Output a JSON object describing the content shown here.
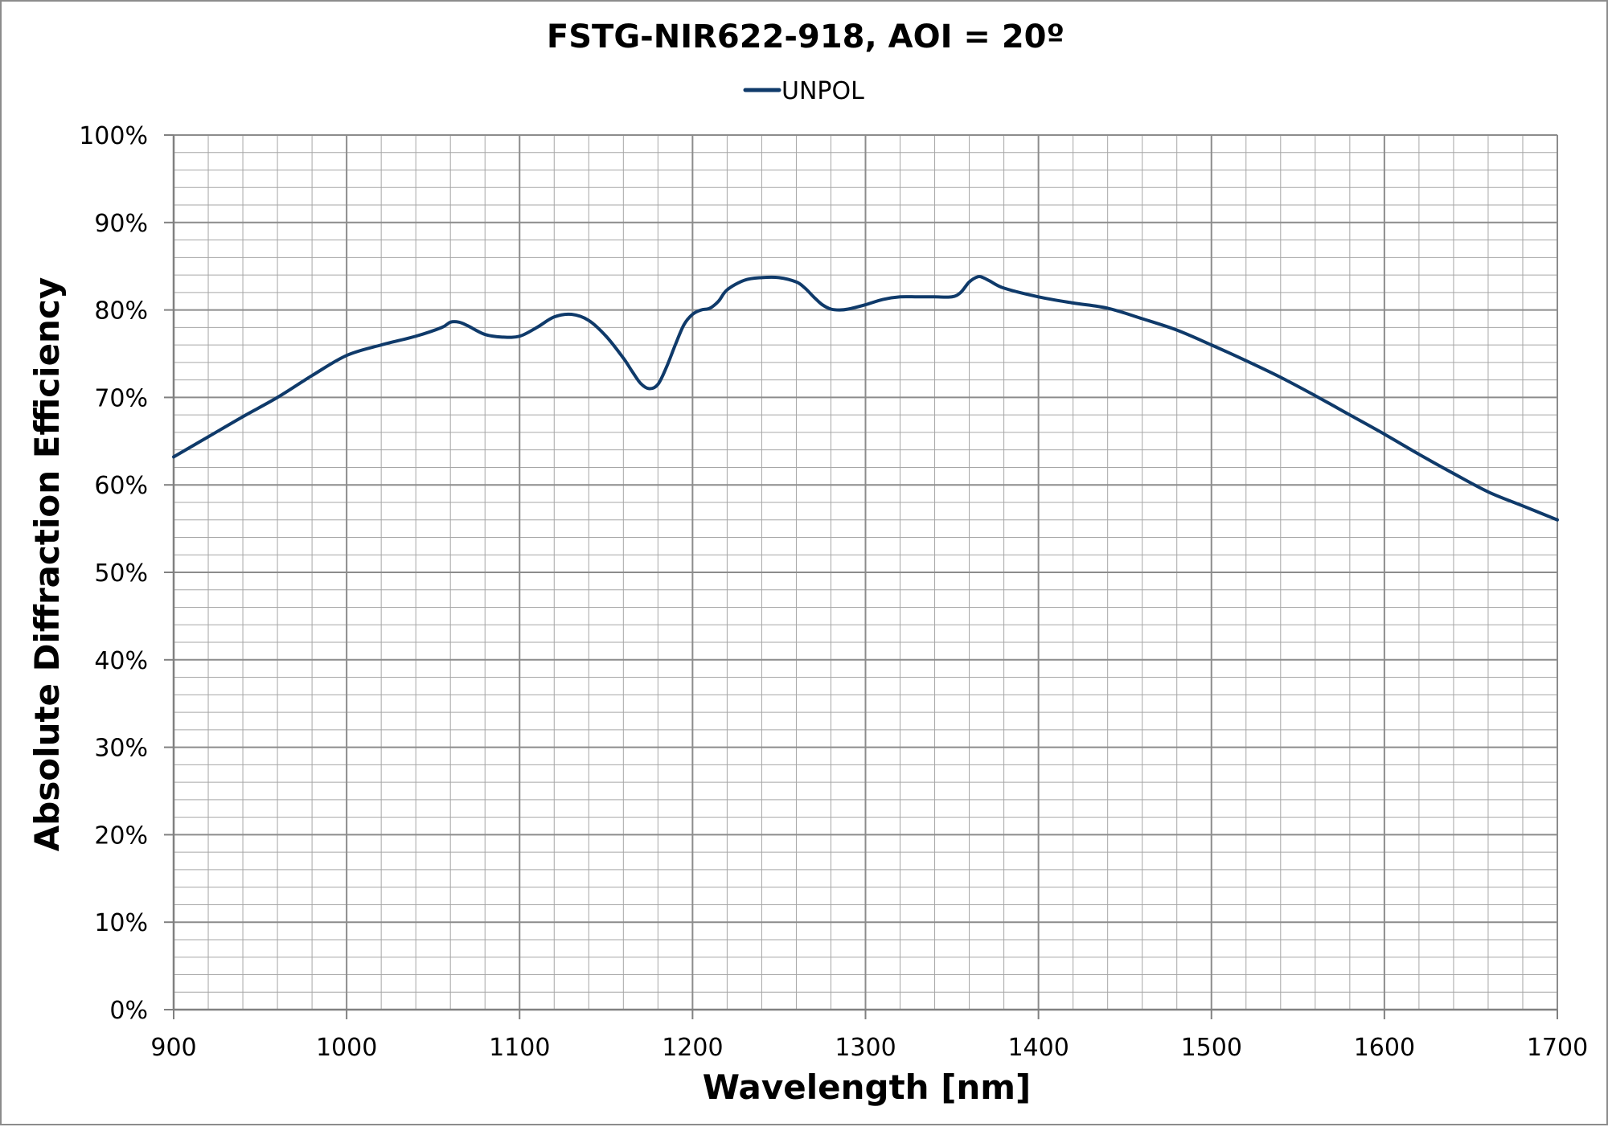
{
  "chart_data": {
    "type": "line",
    "title": "FSTG-NIR622-918, AOI = 20º",
    "xlabel": "Wavelength [nm]",
    "ylabel": "Absolute Diffraction Efficiency",
    "xlim": [
      900,
      1700
    ],
    "ylim": [
      0,
      100
    ],
    "x_ticks": [
      900,
      1000,
      1100,
      1200,
      1300,
      1400,
      1500,
      1600,
      1700
    ],
    "x_tick_labels": [
      "900",
      "1000",
      "1100",
      "1200",
      "1300",
      "1400",
      "1500",
      "1600",
      "1700"
    ],
    "y_ticks": [
      0,
      10,
      20,
      30,
      40,
      50,
      60,
      70,
      80,
      90,
      100
    ],
    "y_tick_labels": [
      "0%",
      "10%",
      "20%",
      "30%",
      "40%",
      "50%",
      "60%",
      "70%",
      "80%",
      "90%",
      "100%"
    ],
    "x_minor_step": 20,
    "y_minor_step": 2,
    "grid": true,
    "legend_position": "top-center",
    "colors": {
      "series": "#0f3a6a",
      "grid": "#a6a6a6",
      "axis": "#808080"
    },
    "series": [
      {
        "name": "UNPOL",
        "x": [
          900,
          920,
          940,
          960,
          980,
          1000,
          1020,
          1040,
          1055,
          1060,
          1065,
          1070,
          1080,
          1090,
          1100,
          1110,
          1120,
          1130,
          1140,
          1150,
          1160,
          1165,
          1170,
          1175,
          1180,
          1185,
          1190,
          1195,
          1200,
          1205,
          1210,
          1215,
          1220,
          1230,
          1240,
          1250,
          1260,
          1265,
          1270,
          1275,
          1280,
          1285,
          1290,
          1300,
          1310,
          1320,
          1330,
          1340,
          1350,
          1355,
          1360,
          1365,
          1368,
          1372,
          1380,
          1400,
          1420,
          1440,
          1460,
          1480,
          1500,
          1520,
          1540,
          1560,
          1580,
          1600,
          1620,
          1640,
          1660,
          1680,
          1700
        ],
        "y": [
          63.2,
          65.5,
          67.8,
          70.0,
          72.5,
          74.8,
          76.0,
          77.0,
          78.0,
          78.6,
          78.6,
          78.2,
          77.2,
          76.9,
          77.0,
          78.0,
          79.2,
          79.5,
          78.8,
          77.0,
          74.5,
          73.0,
          71.6,
          71.0,
          71.5,
          73.5,
          76.0,
          78.3,
          79.5,
          80.0,
          80.2,
          81.0,
          82.3,
          83.4,
          83.7,
          83.7,
          83.2,
          82.5,
          81.5,
          80.6,
          80.1,
          80.0,
          80.1,
          80.6,
          81.2,
          81.5,
          81.5,
          81.5,
          81.5,
          82.0,
          83.2,
          83.8,
          83.7,
          83.3,
          82.5,
          81.5,
          80.8,
          80.2,
          79.0,
          77.7,
          76.0,
          74.2,
          72.3,
          70.2,
          68.0,
          65.8,
          63.5,
          61.3,
          59.2,
          57.6,
          56.0
        ]
      }
    ]
  }
}
